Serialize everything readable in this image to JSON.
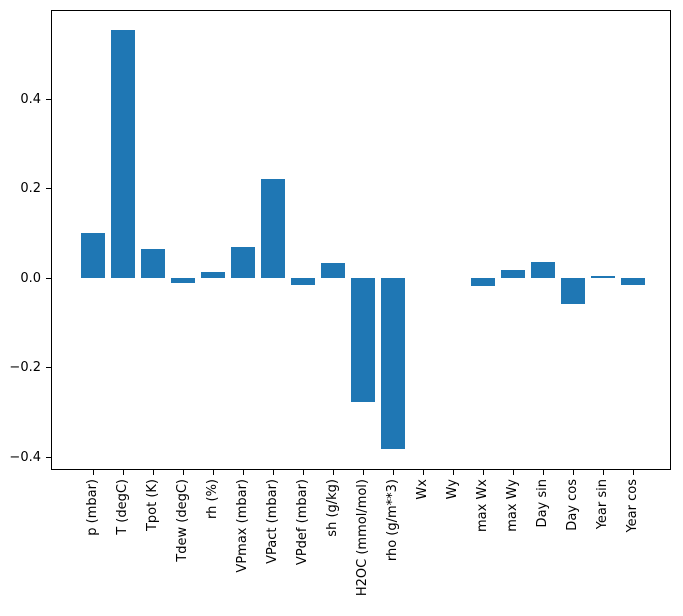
{
  "figure": {
    "background": "#ffffff"
  },
  "chart_data": {
    "type": "bar",
    "title": "",
    "xlabel": "",
    "ylabel": "",
    "grid": false,
    "legend": null,
    "x_tick_rotation": 90,
    "bar_color": "#1f77b4",
    "axis_color": "#000000",
    "text_color": "#000000",
    "categories": [
      "p (mbar)",
      "T (degC)",
      "Tpot (K)",
      "Tdew (degC)",
      "rh (%)",
      "VPmax (mbar)",
      "VPact (mbar)",
      "VPdef (mbar)",
      "sh (g/kg)",
      "H2OC (mmol/mol)",
      "rho (g/m**3)",
      "Wx",
      "Wy",
      "max Wx",
      "max Wy",
      "Day sin",
      "Day cos",
      "Year sin",
      "Year cos"
    ],
    "values": [
      0.1,
      0.554,
      0.064,
      -0.012,
      0.013,
      0.069,
      0.221,
      -0.016,
      0.033,
      -0.277,
      -0.382,
      0.0,
      0.0,
      -0.018,
      0.018,
      0.035,
      -0.058,
      0.004,
      -0.015
    ],
    "ylim": [
      -0.429,
      0.599
    ],
    "yticks": [
      -0.4,
      -0.2,
      0.0,
      0.2,
      0.4
    ],
    "ytick_labels": [
      "−0.4",
      "−0.2",
      "0.0",
      "0.2",
      "0.4"
    ]
  }
}
